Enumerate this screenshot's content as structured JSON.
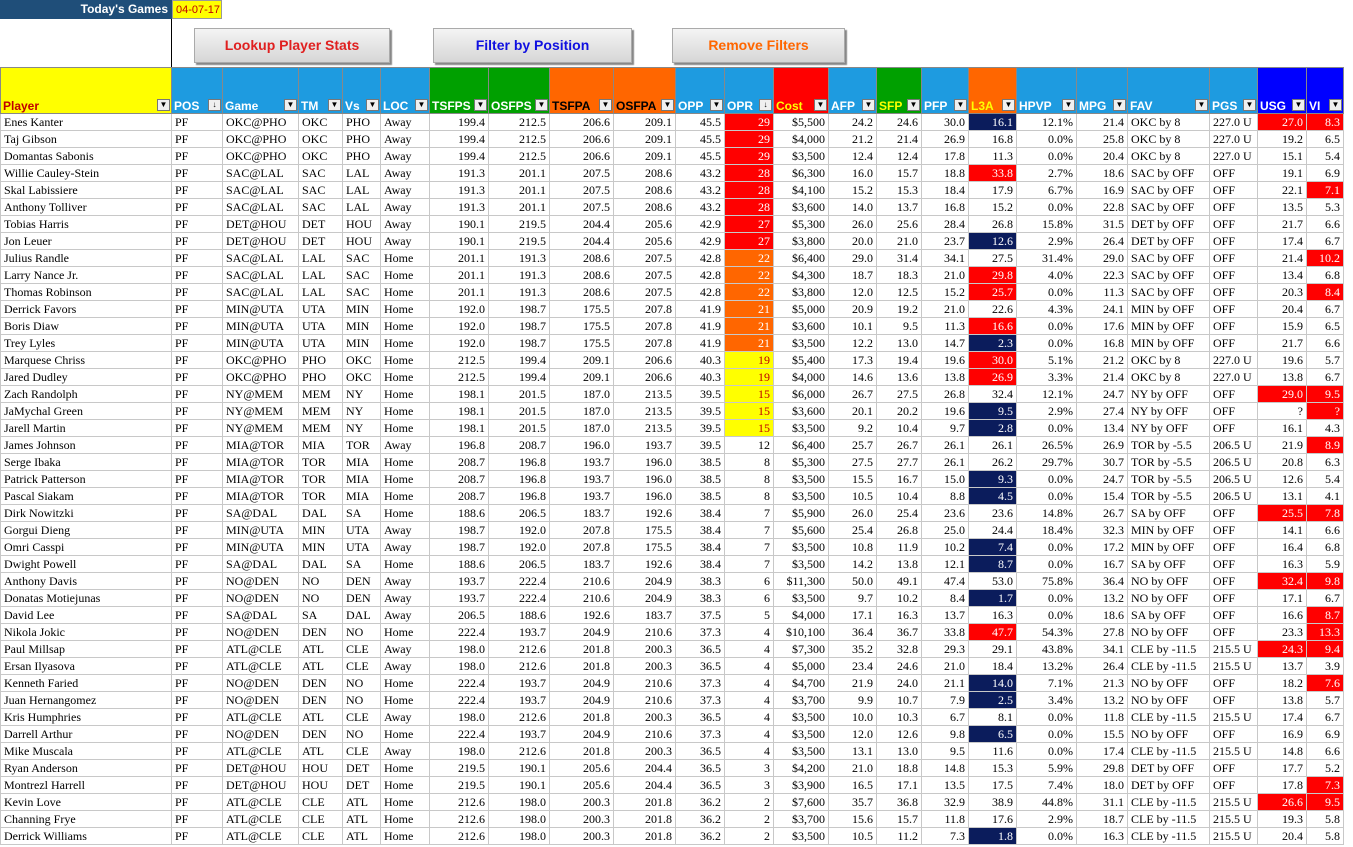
{
  "header": {
    "title": "Today's Games",
    "date": "04-07-17"
  },
  "buttons": {
    "lookup": "Lookup Player Stats",
    "filter": "Filter by Position",
    "remove": "Remove Filters"
  },
  "colors": {
    "player_header": "#ffff00",
    "blue_header": "#1e9be0",
    "green_header": "#00a000",
    "orange_header": "#ff6600",
    "red_header": "#ff0000",
    "usg_header": "#0000ff"
  },
  "columns": [
    {
      "label": "Player",
      "bg": "#ffff00",
      "fg": "#c00000",
      "w": 171
    },
    {
      "label": "POS",
      "bg": "#1e9be0",
      "fg": "#fff",
      "w": 51
    },
    {
      "label": "Game",
      "bg": "#1e9be0",
      "fg": "#fff",
      "w": 76
    },
    {
      "label": "TM",
      "bg": "#1e9be0",
      "fg": "#fff",
      "w": 44
    },
    {
      "label": "Vs",
      "bg": "#1e9be0",
      "fg": "#fff",
      "w": 38
    },
    {
      "label": "LOC",
      "bg": "#1e9be0",
      "fg": "#fff",
      "w": 49
    },
    {
      "label": "TSFPS",
      "bg": "#00a000",
      "fg": "#fff",
      "w": 59
    },
    {
      "label": "OSFPS",
      "bg": "#00a000",
      "fg": "#fff",
      "w": 61
    },
    {
      "label": "TSFPA",
      "bg": "#ff6600",
      "fg": "#000",
      "w": 64
    },
    {
      "label": "OSFPA",
      "bg": "#ff6600",
      "fg": "#000",
      "w": 62
    },
    {
      "label": "OPP",
      "bg": "#1e9be0",
      "fg": "#fff",
      "w": 49
    },
    {
      "label": "OPR",
      "bg": "#1e9be0",
      "fg": "#fff",
      "w": 49
    },
    {
      "label": "Cost",
      "bg": "#ff0000",
      "fg": "#ffff00",
      "w": 55
    },
    {
      "label": "AFP",
      "bg": "#1e9be0",
      "fg": "#fff",
      "w": 48
    },
    {
      "label": "SFP",
      "bg": "#00a000",
      "fg": "#ffff00",
      "w": 45
    },
    {
      "label": "PFP",
      "bg": "#1e9be0",
      "fg": "#fff",
      "w": 47
    },
    {
      "label": "L3A",
      "bg": "#ff6600",
      "fg": "#ffff00",
      "w": 48
    },
    {
      "label": "HPVP",
      "bg": "#1e9be0",
      "fg": "#fff",
      "w": 60
    },
    {
      "label": "MPG",
      "bg": "#1e9be0",
      "fg": "#fff",
      "w": 51
    },
    {
      "label": "FAV",
      "bg": "#1e9be0",
      "fg": "#fff",
      "w": 82
    },
    {
      "label": "PGS",
      "bg": "#1e9be0",
      "fg": "#fff",
      "w": 48
    },
    {
      "label": "USG",
      "bg": "#0000ff",
      "fg": "#fff",
      "w": 49
    },
    {
      "label": "VI",
      "bg": "#0000ff",
      "fg": "#fff",
      "w": 37
    }
  ],
  "rows": [
    [
      "Enes Kanter",
      "PF",
      "OKC@PHO",
      "OKC",
      "PHO",
      "Away",
      "199.4",
      "212.5",
      "206.6",
      "209.1",
      "45.5",
      "29",
      "$5,500",
      "24.2",
      "24.6",
      "30.0",
      "16.1",
      "12.1%",
      "21.4",
      "OKC by 8",
      "227.0 U",
      "27.0",
      "8.3"
    ],
    [
      "Taj Gibson",
      "PF",
      "OKC@PHO",
      "OKC",
      "PHO",
      "Away",
      "199.4",
      "212.5",
      "206.6",
      "209.1",
      "45.5",
      "29",
      "$4,000",
      "21.2",
      "21.4",
      "26.9",
      "16.8",
      "0.0%",
      "25.8",
      "OKC by 8",
      "227.0 U",
      "19.2",
      "6.5"
    ],
    [
      "Domantas Sabonis",
      "PF",
      "OKC@PHO",
      "OKC",
      "PHO",
      "Away",
      "199.4",
      "212.5",
      "206.6",
      "209.1",
      "45.5",
      "29",
      "$3,500",
      "12.4",
      "12.4",
      "17.8",
      "11.3",
      "0.0%",
      "20.4",
      "OKC by 8",
      "227.0 U",
      "15.1",
      "5.4"
    ],
    [
      "Willie Cauley-Stein",
      "PF",
      "SAC@LAL",
      "SAC",
      "LAL",
      "Away",
      "191.3",
      "201.1",
      "207.5",
      "208.6",
      "43.2",
      "28",
      "$6,300",
      "16.0",
      "15.7",
      "18.8",
      "33.8",
      "2.7%",
      "18.6",
      "SAC by OFF",
      "OFF",
      "19.1",
      "6.9"
    ],
    [
      "Skal Labissiere",
      "PF",
      "SAC@LAL",
      "SAC",
      "LAL",
      "Away",
      "191.3",
      "201.1",
      "207.5",
      "208.6",
      "43.2",
      "28",
      "$4,100",
      "15.2",
      "15.3",
      "18.4",
      "17.9",
      "6.7%",
      "16.9",
      "SAC by OFF",
      "OFF",
      "22.1",
      "7.1"
    ],
    [
      "Anthony Tolliver",
      "PF",
      "SAC@LAL",
      "SAC",
      "LAL",
      "Away",
      "191.3",
      "201.1",
      "207.5",
      "208.6",
      "43.2",
      "28",
      "$3,600",
      "14.0",
      "13.7",
      "16.8",
      "15.2",
      "0.0%",
      "22.8",
      "SAC by OFF",
      "OFF",
      "13.5",
      "5.3"
    ],
    [
      "Tobias Harris",
      "PF",
      "DET@HOU",
      "DET",
      "HOU",
      "Away",
      "190.1",
      "219.5",
      "204.4",
      "205.6",
      "42.9",
      "27",
      "$5,300",
      "26.0",
      "25.6",
      "28.4",
      "26.8",
      "15.8%",
      "31.5",
      "DET by OFF",
      "OFF",
      "21.7",
      "6.6"
    ],
    [
      "Jon Leuer",
      "PF",
      "DET@HOU",
      "DET",
      "HOU",
      "Away",
      "190.1",
      "219.5",
      "204.4",
      "205.6",
      "42.9",
      "27",
      "$3,800",
      "20.0",
      "21.0",
      "23.7",
      "12.6",
      "2.9%",
      "26.4",
      "DET by OFF",
      "OFF",
      "17.4",
      "6.7"
    ],
    [
      "Julius Randle",
      "PF",
      "SAC@LAL",
      "LAL",
      "SAC",
      "Home",
      "201.1",
      "191.3",
      "208.6",
      "207.5",
      "42.8",
      "22",
      "$6,400",
      "29.0",
      "31.4",
      "34.1",
      "27.5",
      "31.4%",
      "29.0",
      "SAC by OFF",
      "OFF",
      "21.4",
      "10.2"
    ],
    [
      "Larry Nance Jr.",
      "PF",
      "SAC@LAL",
      "LAL",
      "SAC",
      "Home",
      "201.1",
      "191.3",
      "208.6",
      "207.5",
      "42.8",
      "22",
      "$4,300",
      "18.7",
      "18.3",
      "21.0",
      "29.8",
      "4.0%",
      "22.3",
      "SAC by OFF",
      "OFF",
      "13.4",
      "6.8"
    ],
    [
      "Thomas Robinson",
      "PF",
      "SAC@LAL",
      "LAL",
      "SAC",
      "Home",
      "201.1",
      "191.3",
      "208.6",
      "207.5",
      "42.8",
      "22",
      "$3,800",
      "12.0",
      "12.5",
      "15.2",
      "25.7",
      "0.0%",
      "11.3",
      "SAC by OFF",
      "OFF",
      "20.3",
      "8.4"
    ],
    [
      "Derrick Favors",
      "PF",
      "MIN@UTA",
      "UTA",
      "MIN",
      "Home",
      "192.0",
      "198.7",
      "175.5",
      "207.8",
      "41.9",
      "21",
      "$5,000",
      "20.9",
      "19.2",
      "21.0",
      "22.6",
      "4.3%",
      "24.1",
      "MIN by OFF",
      "OFF",
      "20.4",
      "6.7"
    ],
    [
      "Boris Diaw",
      "PF",
      "MIN@UTA",
      "UTA",
      "MIN",
      "Home",
      "192.0",
      "198.7",
      "175.5",
      "207.8",
      "41.9",
      "21",
      "$3,600",
      "10.1",
      "9.5",
      "11.3",
      "16.6",
      "0.0%",
      "17.6",
      "MIN by OFF",
      "OFF",
      "15.9",
      "6.5"
    ],
    [
      "Trey Lyles",
      "PF",
      "MIN@UTA",
      "UTA",
      "MIN",
      "Home",
      "192.0",
      "198.7",
      "175.5",
      "207.8",
      "41.9",
      "21",
      "$3,500",
      "12.2",
      "13.0",
      "14.7",
      "2.3",
      "0.0%",
      "16.8",
      "MIN by OFF",
      "OFF",
      "21.7",
      "6.6"
    ],
    [
      "Marquese Chriss",
      "PF",
      "OKC@PHO",
      "PHO",
      "OKC",
      "Home",
      "212.5",
      "199.4",
      "209.1",
      "206.6",
      "40.3",
      "19",
      "$5,400",
      "17.3",
      "19.4",
      "19.6",
      "30.0",
      "5.1%",
      "21.2",
      "OKC by 8",
      "227.0 U",
      "19.6",
      "5.7"
    ],
    [
      "Jared Dudley",
      "PF",
      "OKC@PHO",
      "PHO",
      "OKC",
      "Home",
      "212.5",
      "199.4",
      "209.1",
      "206.6",
      "40.3",
      "19",
      "$4,000",
      "14.6",
      "13.6",
      "13.8",
      "26.9",
      "3.3%",
      "21.4",
      "OKC by 8",
      "227.0 U",
      "13.8",
      "6.7"
    ],
    [
      "Zach Randolph",
      "PF",
      "NY@MEM",
      "MEM",
      "NY",
      "Home",
      "198.1",
      "201.5",
      "187.0",
      "213.5",
      "39.5",
      "15",
      "$6,000",
      "26.7",
      "27.5",
      "26.8",
      "32.4",
      "12.1%",
      "24.7",
      "NY by OFF",
      "OFF",
      "29.0",
      "9.5"
    ],
    [
      "JaMychal Green",
      "PF",
      "NY@MEM",
      "MEM",
      "NY",
      "Home",
      "198.1",
      "201.5",
      "187.0",
      "213.5",
      "39.5",
      "15",
      "$3,600",
      "20.1",
      "20.2",
      "19.6",
      "9.5",
      "2.9%",
      "27.4",
      "NY by OFF",
      "OFF",
      "?",
      "?"
    ],
    [
      "Jarell Martin",
      "PF",
      "NY@MEM",
      "MEM",
      "NY",
      "Home",
      "198.1",
      "201.5",
      "187.0",
      "213.5",
      "39.5",
      "15",
      "$3,500",
      "9.2",
      "10.4",
      "9.7",
      "2.8",
      "0.0%",
      "13.4",
      "NY by OFF",
      "OFF",
      "16.1",
      "4.3"
    ],
    [
      "James Johnson",
      "PF",
      "MIA@TOR",
      "MIA",
      "TOR",
      "Away",
      "196.8",
      "208.7",
      "196.0",
      "193.7",
      "39.5",
      "12",
      "$6,400",
      "25.7",
      "26.7",
      "26.1",
      "26.1",
      "26.5%",
      "26.9",
      "TOR by -5.5",
      "206.5 U",
      "21.9",
      "8.9"
    ],
    [
      "Serge Ibaka",
      "PF",
      "MIA@TOR",
      "TOR",
      "MIA",
      "Home",
      "208.7",
      "196.8",
      "193.7",
      "196.0",
      "38.5",
      "8",
      "$5,300",
      "27.5",
      "27.7",
      "26.1",
      "26.2",
      "29.7%",
      "30.7",
      "TOR by -5.5",
      "206.5 U",
      "20.8",
      "6.3"
    ],
    [
      "Patrick Patterson",
      "PF",
      "MIA@TOR",
      "TOR",
      "MIA",
      "Home",
      "208.7",
      "196.8",
      "193.7",
      "196.0",
      "38.5",
      "8",
      "$3,500",
      "15.5",
      "16.7",
      "15.0",
      "9.3",
      "0.0%",
      "24.7",
      "TOR by -5.5",
      "206.5 U",
      "12.6",
      "5.4"
    ],
    [
      "Pascal Siakam",
      "PF",
      "MIA@TOR",
      "TOR",
      "MIA",
      "Home",
      "208.7",
      "196.8",
      "193.7",
      "196.0",
      "38.5",
      "8",
      "$3,500",
      "10.5",
      "10.4",
      "8.8",
      "4.5",
      "0.0%",
      "15.4",
      "TOR by -5.5",
      "206.5 U",
      "13.1",
      "4.1"
    ],
    [
      "Dirk Nowitzki",
      "PF",
      "SA@DAL",
      "DAL",
      "SA",
      "Home",
      "188.6",
      "206.5",
      "183.7",
      "192.6",
      "38.4",
      "7",
      "$5,900",
      "26.0",
      "25.4",
      "23.6",
      "23.6",
      "14.8%",
      "26.7",
      "SA by OFF",
      "OFF",
      "25.5",
      "7.8"
    ],
    [
      "Gorgui Dieng",
      "PF",
      "MIN@UTA",
      "MIN",
      "UTA",
      "Away",
      "198.7",
      "192.0",
      "207.8",
      "175.5",
      "38.4",
      "7",
      "$5,600",
      "25.4",
      "26.8",
      "25.0",
      "24.4",
      "18.4%",
      "32.3",
      "MIN by OFF",
      "OFF",
      "14.1",
      "6.6"
    ],
    [
      "Omri Casspi",
      "PF",
      "MIN@UTA",
      "MIN",
      "UTA",
      "Away",
      "198.7",
      "192.0",
      "207.8",
      "175.5",
      "38.4",
      "7",
      "$3,500",
      "10.8",
      "11.9",
      "10.2",
      "7.4",
      "0.0%",
      "17.2",
      "MIN by OFF",
      "OFF",
      "16.4",
      "6.8"
    ],
    [
      "Dwight Powell",
      "PF",
      "SA@DAL",
      "DAL",
      "SA",
      "Home",
      "188.6",
      "206.5",
      "183.7",
      "192.6",
      "38.4",
      "7",
      "$3,500",
      "14.2",
      "13.8",
      "12.1",
      "8.7",
      "0.0%",
      "16.7",
      "SA by OFF",
      "OFF",
      "16.3",
      "5.9"
    ],
    [
      "Anthony Davis",
      "PF",
      "NO@DEN",
      "NO",
      "DEN",
      "Away",
      "193.7",
      "222.4",
      "210.6",
      "204.9",
      "38.3",
      "6",
      "$11,300",
      "50.0",
      "49.1",
      "47.4",
      "53.0",
      "75.8%",
      "36.4",
      "NO by OFF",
      "OFF",
      "32.4",
      "9.8"
    ],
    [
      "Donatas Motiejunas",
      "PF",
      "NO@DEN",
      "NO",
      "DEN",
      "Away",
      "193.7",
      "222.4",
      "210.6",
      "204.9",
      "38.3",
      "6",
      "$3,500",
      "9.7",
      "10.2",
      "8.4",
      "1.7",
      "0.0%",
      "13.2",
      "NO by OFF",
      "OFF",
      "17.1",
      "6.7"
    ],
    [
      "David Lee",
      "PF",
      "SA@DAL",
      "SA",
      "DAL",
      "Away",
      "206.5",
      "188.6",
      "192.6",
      "183.7",
      "37.5",
      "5",
      "$4,000",
      "17.1",
      "16.3",
      "13.7",
      "16.3",
      "0.0%",
      "18.6",
      "SA by OFF",
      "OFF",
      "16.6",
      "8.7"
    ],
    [
      "Nikola Jokic",
      "PF",
      "NO@DEN",
      "DEN",
      "NO",
      "Home",
      "222.4",
      "193.7",
      "204.9",
      "210.6",
      "37.3",
      "4",
      "$10,100",
      "36.4",
      "36.7",
      "33.8",
      "47.7",
      "54.3%",
      "27.8",
      "NO by OFF",
      "OFF",
      "23.3",
      "13.3"
    ],
    [
      "Paul Millsap",
      "PF",
      "ATL@CLE",
      "ATL",
      "CLE",
      "Away",
      "198.0",
      "212.6",
      "201.8",
      "200.3",
      "36.5",
      "4",
      "$7,300",
      "35.2",
      "32.8",
      "29.3",
      "29.1",
      "43.8%",
      "34.1",
      "CLE by -11.5",
      "215.5 U",
      "24.3",
      "9.4"
    ],
    [
      "Ersan Ilyasova",
      "PF",
      "ATL@CLE",
      "ATL",
      "CLE",
      "Away",
      "198.0",
      "212.6",
      "201.8",
      "200.3",
      "36.5",
      "4",
      "$5,000",
      "23.4",
      "24.6",
      "21.0",
      "18.4",
      "13.2%",
      "26.4",
      "CLE by -11.5",
      "215.5 U",
      "13.7",
      "3.9"
    ],
    [
      "Kenneth Faried",
      "PF",
      "NO@DEN",
      "DEN",
      "NO",
      "Home",
      "222.4",
      "193.7",
      "204.9",
      "210.6",
      "37.3",
      "4",
      "$4,700",
      "21.9",
      "24.0",
      "21.1",
      "14.0",
      "7.1%",
      "21.3",
      "NO by OFF",
      "OFF",
      "18.2",
      "7.6"
    ],
    [
      "Juan Hernangomez",
      "PF",
      "NO@DEN",
      "DEN",
      "NO",
      "Home",
      "222.4",
      "193.7",
      "204.9",
      "210.6",
      "37.3",
      "4",
      "$3,700",
      "9.9",
      "10.7",
      "7.9",
      "2.5",
      "3.4%",
      "13.2",
      "NO by OFF",
      "OFF",
      "13.8",
      "5.7"
    ],
    [
      "Kris Humphries",
      "PF",
      "ATL@CLE",
      "ATL",
      "CLE",
      "Away",
      "198.0",
      "212.6",
      "201.8",
      "200.3",
      "36.5",
      "4",
      "$3,500",
      "10.0",
      "10.3",
      "6.7",
      "8.1",
      "0.0%",
      "11.8",
      "CLE by -11.5",
      "215.5 U",
      "17.4",
      "6.7"
    ],
    [
      "Darrell Arthur",
      "PF",
      "NO@DEN",
      "DEN",
      "NO",
      "Home",
      "222.4",
      "193.7",
      "204.9",
      "210.6",
      "37.3",
      "4",
      "$3,500",
      "12.0",
      "12.6",
      "9.8",
      "6.5",
      "0.0%",
      "15.5",
      "NO by OFF",
      "OFF",
      "16.9",
      "6.9"
    ],
    [
      "Mike Muscala",
      "PF",
      "ATL@CLE",
      "ATL",
      "CLE",
      "Away",
      "198.0",
      "212.6",
      "201.8",
      "200.3",
      "36.5",
      "4",
      "$3,500",
      "13.1",
      "13.0",
      "9.5",
      "11.6",
      "0.0%",
      "17.4",
      "CLE by -11.5",
      "215.5 U",
      "14.8",
      "6.6"
    ],
    [
      "Ryan Anderson",
      "PF",
      "DET@HOU",
      "HOU",
      "DET",
      "Home",
      "219.5",
      "190.1",
      "205.6",
      "204.4",
      "36.5",
      "3",
      "$4,200",
      "21.0",
      "18.8",
      "14.8",
      "15.3",
      "5.9%",
      "29.8",
      "DET by OFF",
      "OFF",
      "17.7",
      "5.2"
    ],
    [
      "Montrezl Harrell",
      "PF",
      "DET@HOU",
      "HOU",
      "DET",
      "Home",
      "219.5",
      "190.1",
      "205.6",
      "204.4",
      "36.5",
      "3",
      "$3,900",
      "16.5",
      "17.1",
      "13.5",
      "17.5",
      "7.4%",
      "18.0",
      "DET by OFF",
      "OFF",
      "17.8",
      "7.3"
    ],
    [
      "Kevin Love",
      "PF",
      "ATL@CLE",
      "CLE",
      "ATL",
      "Home",
      "212.6",
      "198.0",
      "200.3",
      "201.8",
      "36.2",
      "2",
      "$7,600",
      "35.7",
      "36.8",
      "32.9",
      "38.9",
      "44.8%",
      "31.1",
      "CLE by -11.5",
      "215.5 U",
      "26.6",
      "9.5"
    ],
    [
      "Channing Frye",
      "PF",
      "ATL@CLE",
      "CLE",
      "ATL",
      "Home",
      "212.6",
      "198.0",
      "200.3",
      "201.8",
      "36.2",
      "2",
      "$3,700",
      "15.6",
      "15.7",
      "11.8",
      "17.6",
      "2.9%",
      "18.7",
      "CLE by -11.5",
      "215.5 U",
      "19.3",
      "5.8"
    ],
    [
      "Derrick Williams",
      "PF",
      "ATL@CLE",
      "CLE",
      "ATL",
      "Home",
      "212.6",
      "198.0",
      "200.3",
      "201.8",
      "36.2",
      "2",
      "$3,500",
      "10.5",
      "11.2",
      "7.3",
      "1.8",
      "0.0%",
      "16.3",
      "CLE by -11.5",
      "215.5 U",
      "20.4",
      "5.8"
    ]
  ]
}
